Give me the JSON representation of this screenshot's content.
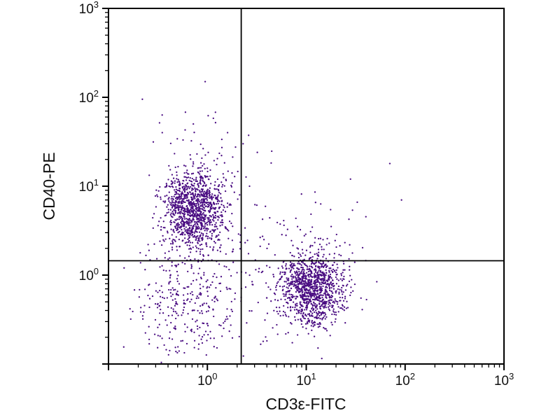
{
  "figure": {
    "background": "#ffffff"
  },
  "chart_data": {
    "type": "scatter",
    "title": "",
    "xlabel": "CD3ε-FITC",
    "ylabel": "CD40-PE",
    "x_scale": "log",
    "y_scale": "log",
    "xlim": [
      0.1,
      1000
    ],
    "ylim": [
      0.1,
      1000
    ],
    "x_tick_exponents": [
      0,
      1,
      2,
      3
    ],
    "y_tick_exponents": [
      0,
      1,
      2,
      3
    ],
    "tick_base": 10,
    "grid": false,
    "legend": "none",
    "gate": {
      "x": 2.2,
      "y": 1.45
    },
    "axis_color": "#000000",
    "point_color": "#4a0d82",
    "point_radius": 1.15,
    "seed": 1337,
    "populations": [
      {
        "name": "CD40+CD3- B cells (upper-left quadrant)",
        "center": [
          0.74,
          5.2
        ],
        "log_sd": [
          0.16,
          0.21
        ],
        "count": 1150
      },
      {
        "name": "CD3+CD40- T cells (lower-right quadrant)",
        "center": [
          11.5,
          0.72
        ],
        "log_sd": [
          0.17,
          0.2
        ],
        "count": 1150
      },
      {
        "name": "double-negative (lower-left quadrant)",
        "center": [
          0.6,
          0.5
        ],
        "log_sd": [
          0.27,
          0.33
        ],
        "count": 300
      },
      {
        "name": "B-cell high tail",
        "center": [
          0.8,
          16.0
        ],
        "log_sd": [
          0.22,
          0.28
        ],
        "count": 70
      },
      {
        "name": "mid scatter between clusters",
        "center": [
          2.6,
          1.2
        ],
        "log_sd": [
          0.42,
          0.5
        ],
        "count": 90
      },
      {
        "name": "T-cell upper tail",
        "center": [
          13.0,
          2.5
        ],
        "log_sd": [
          0.25,
          0.35
        ],
        "count": 45
      }
    ],
    "outlier_points": [
      [
        0.95,
        150
      ],
      [
        0.6,
        68
      ],
      [
        1.15,
        58
      ],
      [
        1.6,
        40
      ],
      [
        2.3,
        30
      ],
      [
        3.2,
        24
      ],
      [
        70,
        18
      ],
      [
        92,
        7
      ],
      [
        28,
        12
      ],
      [
        0.35,
        40
      ],
      [
        0.22,
        95
      ]
    ]
  }
}
